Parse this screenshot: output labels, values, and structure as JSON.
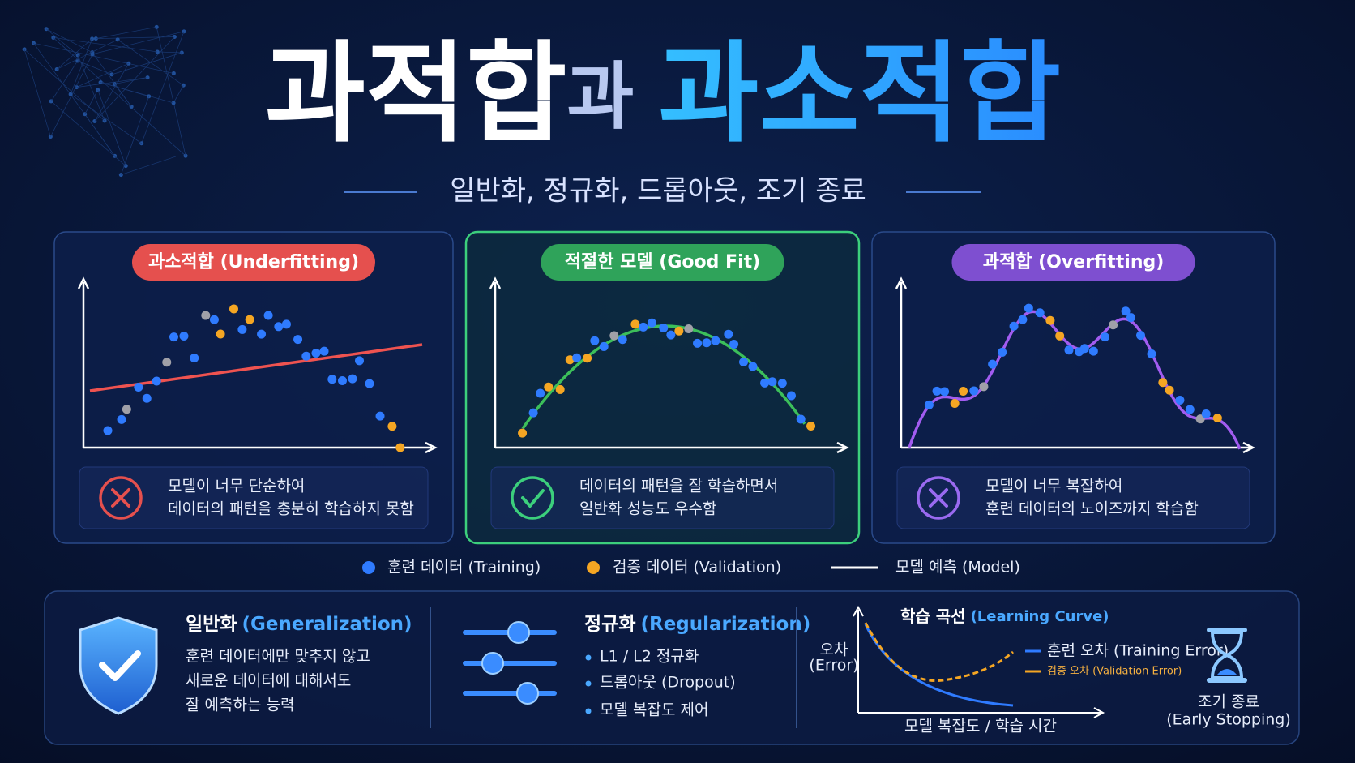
{
  "title": {
    "part1": "과적합",
    "connector": "과",
    "part2": "과소적합"
  },
  "subtitle": "일반화, 정규화, 드롭아웃, 조기 종료",
  "panels": [
    {
      "badge": "과소적합 (Underfitting)",
      "description": [
        "모델이 너무 단순하여",
        "데이터의 패턴을 충분히 학습하지 못함"
      ]
    },
    {
      "badge": "적절한 모델 (Good Fit)",
      "description": [
        "데이터의 패턴을 잘 학습하면서",
        "일반화 성능도 우수함"
      ]
    },
    {
      "badge": "과적합 (Overfitting)",
      "description": [
        "모델이 너무 복잡하여",
        "훈련 데이터의 노이즈까지 학습함"
      ]
    }
  ],
  "legend": [
    "훈련 데이터 (Training)",
    "검증 데이터 (Validation)",
    "모델 예측 (Model)"
  ],
  "bottom": {
    "generalization": {
      "title": "일반화",
      "title_en": "(Generalization)",
      "lines": [
        "훈련 데이터에만 맞추지 않고",
        "새로운 데이터에 대해서도",
        "잘 예측하는 능력"
      ]
    },
    "regularization": {
      "title": "정규화",
      "title_en": "(Regularization)",
      "bullets": [
        "L1 / L2 정규화",
        "드롭아웃 (Dropout)",
        "모델 복잡도 제어"
      ]
    },
    "learning_curve": {
      "title": "학습 곡선",
      "title_en": "(Learning Curve)",
      "y_label": [
        "오차",
        "(Error)"
      ],
      "x_label": "모델 복잡도 / 학습 시간",
      "legend": [
        "훈련 오차 (Training Error)",
        "검증 오차 (Validation Error)"
      ]
    },
    "early_stopping": [
      "조기 종료",
      "(Early Stopping)"
    ]
  }
}
